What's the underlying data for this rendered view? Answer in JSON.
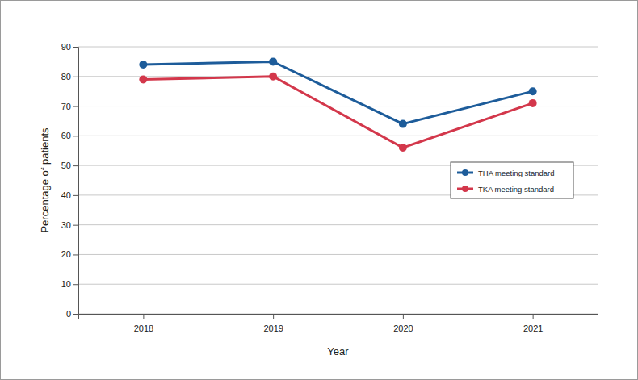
{
  "chart_data": {
    "type": "line",
    "x_label": "Year",
    "y_label": "Percentage of patients",
    "categories": [
      "2018",
      "2019",
      "2020",
      "2021"
    ],
    "series": [
      {
        "name": "THA meeting standard",
        "color": "#1d5c9a",
        "marker": "circle",
        "values": [
          84,
          85,
          64,
          75
        ]
      },
      {
        "name": "TKA meeting standard",
        "color": "#d3374b",
        "marker": "circle",
        "values": [
          79,
          80,
          56,
          71
        ]
      }
    ],
    "ylim": [
      0,
      90
    ],
    "yticks": [
      0,
      10,
      20,
      30,
      40,
      50,
      60,
      70,
      80,
      90
    ],
    "grid": true,
    "legend": "right"
  }
}
